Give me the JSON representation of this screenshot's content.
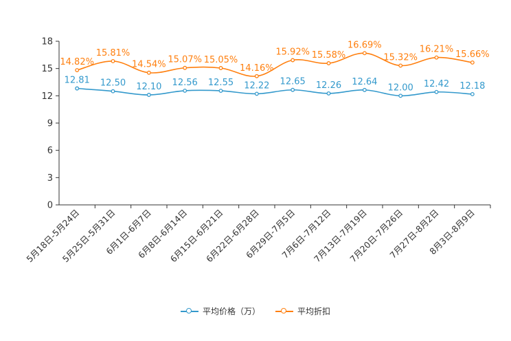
{
  "chart_data": {
    "type": "line",
    "categories": [
      "5月18日-5月24日",
      "5月25日-5月31日",
      "6月1日-6月7日",
      "6月8日-6月14日",
      "6月15日-6月21日",
      "6月22日-6月28日",
      "6月29日-7月5日",
      "7月6日-7月12日",
      "7月13日-7月19日",
      "7月20日-7月26日",
      "7月27日-8月2日",
      "8月3日-8月9日"
    ],
    "series": [
      {
        "name": "平均价格（万）",
        "color": "#3399cc",
        "values": [
          12.81,
          12.5,
          12.1,
          12.56,
          12.55,
          12.22,
          12.65,
          12.26,
          12.64,
          12.0,
          12.42,
          12.18
        ],
        "labels": [
          "12.81",
          "12.50",
          "12.10",
          "12.56",
          "12.55",
          "12.22",
          "12.65",
          "12.26",
          "12.64",
          "12.00",
          "12.42",
          "12.18"
        ]
      },
      {
        "name": "平均折扣",
        "color": "#ff7f0e",
        "values": [
          14.82,
          15.81,
          14.54,
          15.07,
          15.05,
          14.16,
          15.92,
          15.58,
          16.69,
          15.32,
          16.21,
          15.66
        ],
        "labels": [
          "14.82%",
          "15.81%",
          "14.54%",
          "15.07%",
          "15.05%",
          "14.16%",
          "15.92%",
          "15.58%",
          "16.69%",
          "15.32%",
          "16.21%",
          "15.66%"
        ]
      }
    ],
    "yticks": [
      0,
      3,
      6,
      9,
      12,
      15,
      18
    ],
    "ylim": [
      0,
      18
    ],
    "title": "",
    "xlabel": "",
    "ylabel": "",
    "grid": false,
    "legend_position": "bottom"
  }
}
